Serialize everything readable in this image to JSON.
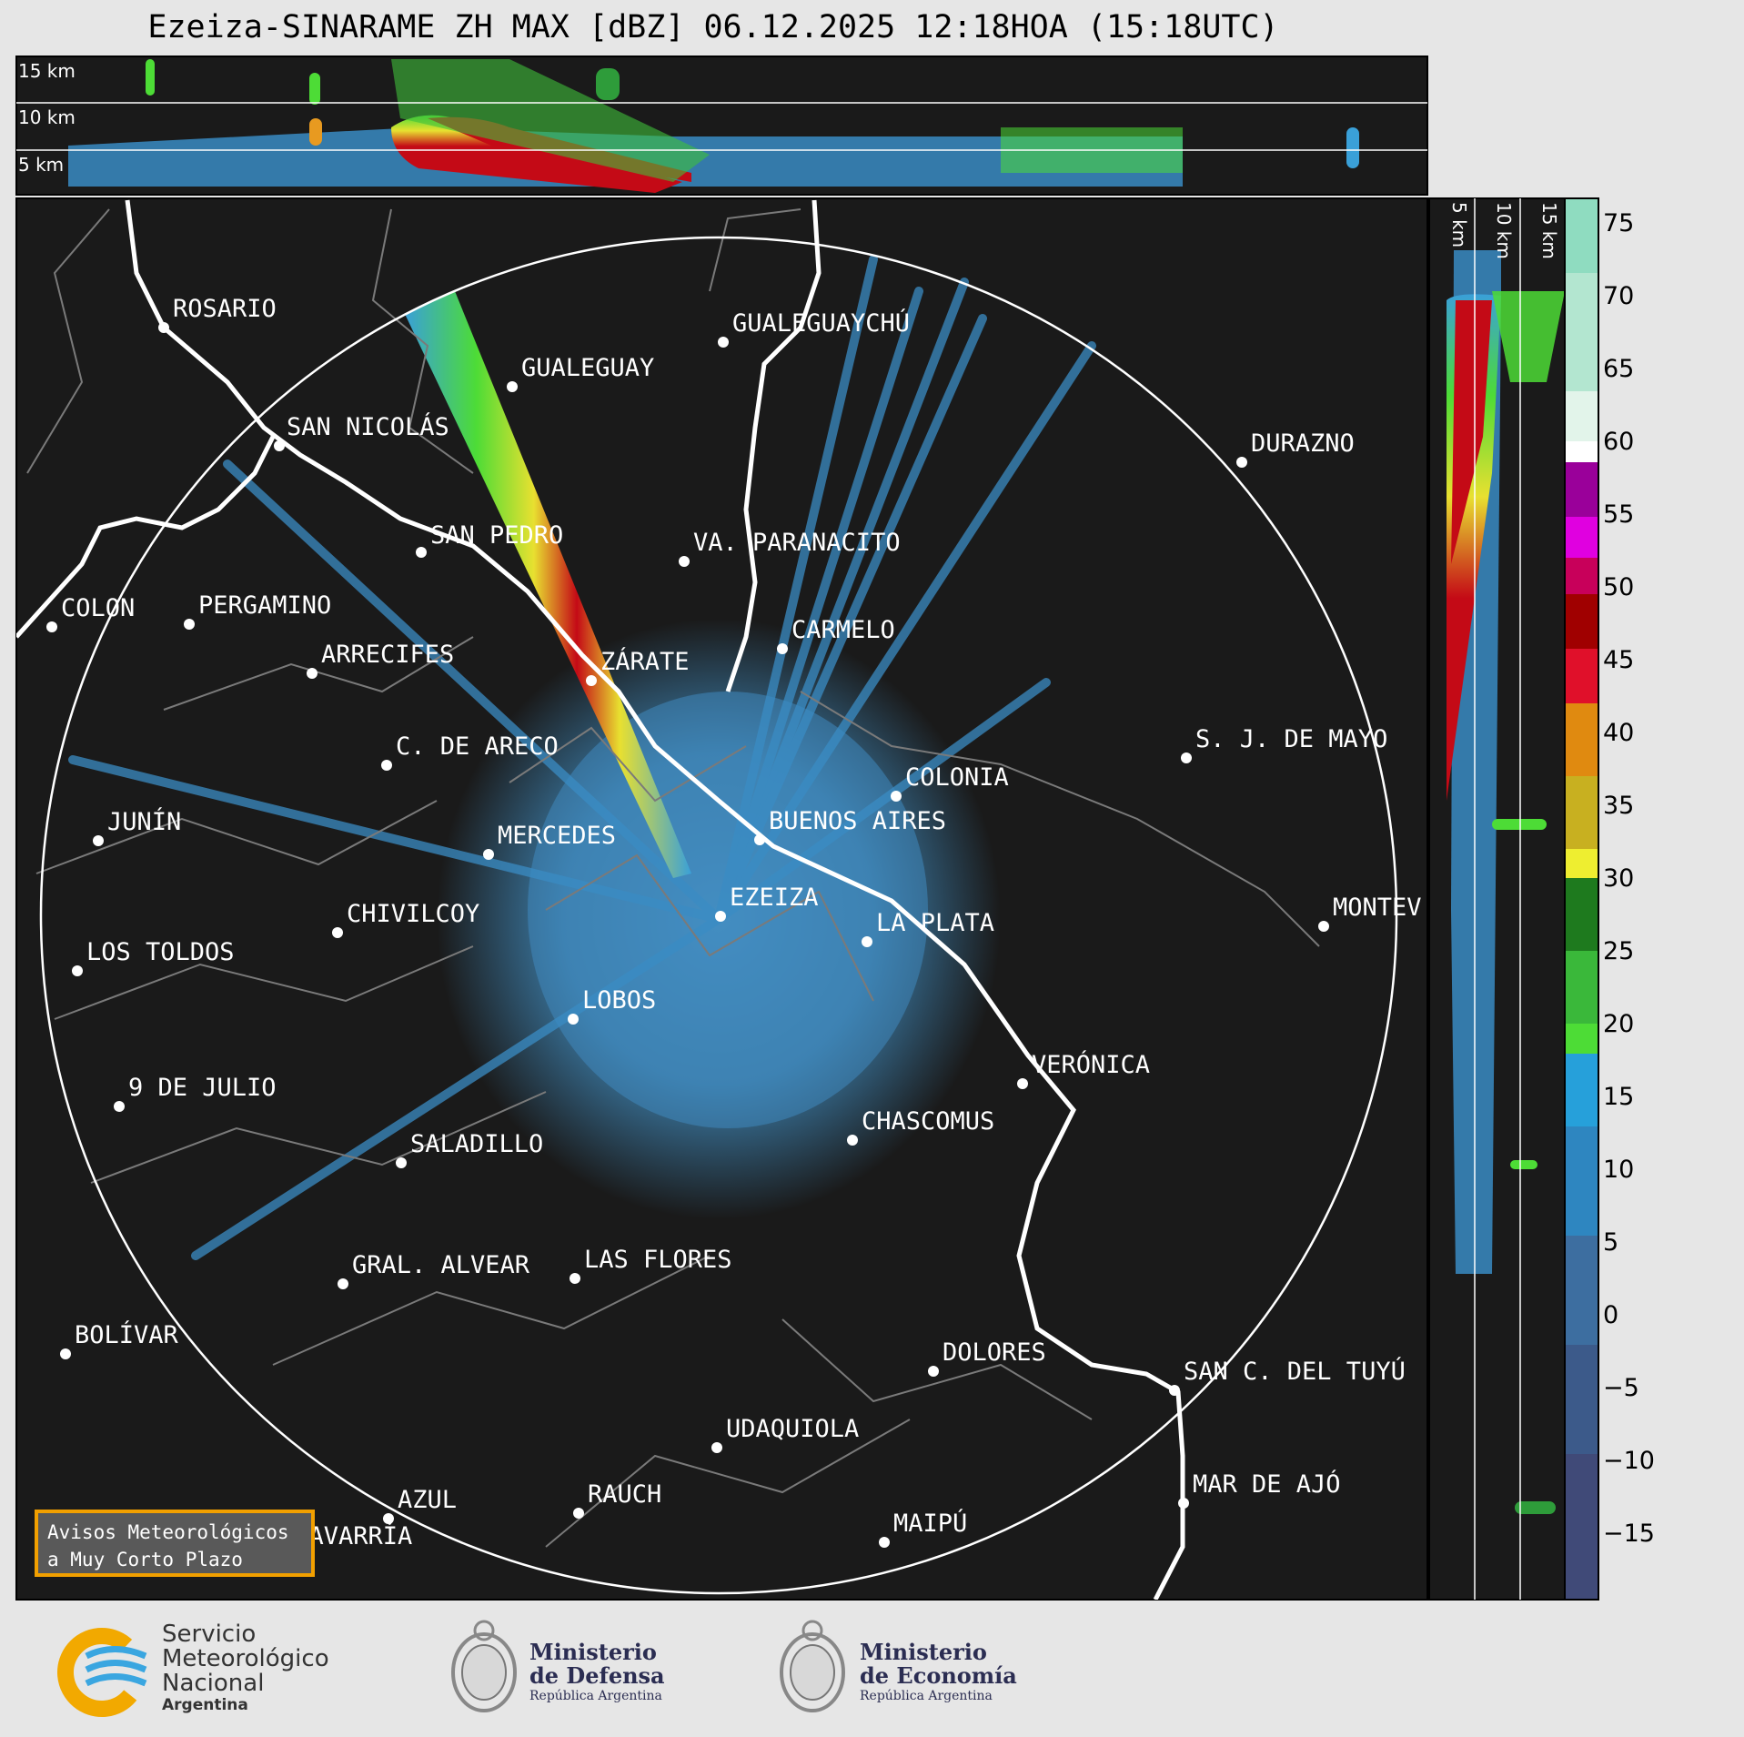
{
  "title": "Ezeiza-SINARAME ZH MAX [dBZ] 06.12.2025 12:18HOA (15:18UTC)",
  "top_panel": {
    "levels": [
      "15 km",
      "10 km",
      "5 km"
    ]
  },
  "side_panel": {
    "levels": [
      "5 km",
      "10 km",
      "15 km"
    ]
  },
  "colorbar": {
    "ticks": [
      "75",
      "70",
      "65",
      "60",
      "55",
      "50",
      "45",
      "40",
      "35",
      "30",
      "25",
      "20",
      "15",
      "10",
      "5",
      "0",
      "−5",
      "−10",
      "−15"
    ]
  },
  "cities": [
    {
      "name": "ROSARIO"
    },
    {
      "name": "GUALEGUAYCHÚ"
    },
    {
      "name": "GUALEGUAY"
    },
    {
      "name": "SAN NICOLÁS"
    },
    {
      "name": "DURAZNO"
    },
    {
      "name": "SAN PEDRO"
    },
    {
      "name": "VA. PARANACITO"
    },
    {
      "name": "COLON"
    },
    {
      "name": "PERGAMINO"
    },
    {
      "name": "CARMELO"
    },
    {
      "name": "ARRECIFES"
    },
    {
      "name": "ZÁRATE"
    },
    {
      "name": "S. J. DE MAYO"
    },
    {
      "name": "C. DE ARECO"
    },
    {
      "name": "COLONIA"
    },
    {
      "name": "JUNÍN"
    },
    {
      "name": "BUENOS AIRES"
    },
    {
      "name": "MERCEDES"
    },
    {
      "name": "EZEIZA"
    },
    {
      "name": "MONTEV"
    },
    {
      "name": "CHIVILCOY"
    },
    {
      "name": "LA PLATA"
    },
    {
      "name": "LOS TOLDOS"
    },
    {
      "name": "LOBOS"
    },
    {
      "name": "VERÓNICA"
    },
    {
      "name": "9 DE JULIO"
    },
    {
      "name": "CHASCOMUS"
    },
    {
      "name": "SALADILLO"
    },
    {
      "name": "GRAL. ALVEAR"
    },
    {
      "name": "LAS FLORES"
    },
    {
      "name": "BOLÍVAR"
    },
    {
      "name": "DOLORES"
    },
    {
      "name": "SAN C. DEL TUYÚ"
    },
    {
      "name": "UDAQUIOLA"
    },
    {
      "name": "MAR DE AJÓ"
    },
    {
      "name": "AZUL"
    },
    {
      "name": "RAUCH"
    },
    {
      "name": "MAIPÚ"
    },
    {
      "name": "OLAVARRÍA"
    }
  ],
  "avisos": {
    "line1": "Avisos Meteorológicos",
    "line2": "a Muy Corto Plazo"
  },
  "footer": {
    "smn": {
      "line1": "Servicio",
      "line2": "Meteorológico",
      "line3": "Nacional",
      "line4": "Argentina"
    },
    "defensa": {
      "line1": "Ministerio",
      "line2": "de Defensa",
      "line3": "República Argentina"
    },
    "economia": {
      "line1": "Ministerio",
      "line2": "de Economía",
      "line3": "República Argentina"
    }
  },
  "colors": {
    "background": "#1a1a1a",
    "accent": "#f2a000",
    "echo_low": "#3a82b8",
    "echo_high": "#d0101a"
  }
}
